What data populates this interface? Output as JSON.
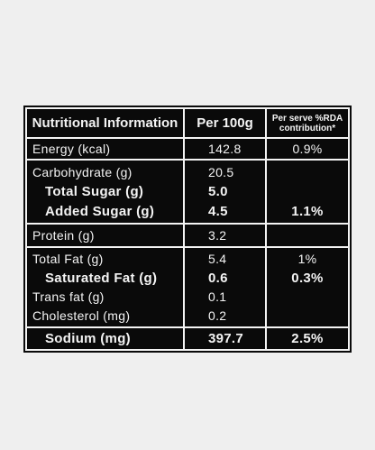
{
  "table": {
    "header": [
      "Nutritional Information",
      "Per 100g",
      "Per serve %RDA contribution*"
    ],
    "groups": [
      [
        {
          "label": "Energy (kcal)",
          "per_100g": "142.8",
          "rda": "0.9%"
        }
      ],
      [
        {
          "label": "Carbohydrate (g)",
          "per_100g": "20.5"
        },
        {
          "label": "Total Sugar (g)",
          "per_100g": "5.0",
          "bold": true
        },
        {
          "label": "Added Sugar (g)",
          "per_100g": "4.5",
          "rda": "1.1%",
          "bold": true
        }
      ],
      [
        {
          "label": "Protein (g)",
          "per_100g": "3.2"
        }
      ],
      [
        {
          "label": "Total Fat (g)",
          "per_100g": "5.4",
          "rda": "1%"
        },
        {
          "label": "Saturated Fat (g)",
          "per_100g": "0.6",
          "rda": "0.3%",
          "bold": true
        },
        {
          "label": "Trans fat (g)",
          "per_100g": "0.1"
        },
        {
          "label": "Cholesterol (mg)",
          "per_100g": "0.2"
        }
      ],
      [
        {
          "label": "Sodium (mg)",
          "per_100g": "397.7",
          "rda": "2.5%",
          "bold": true
        }
      ]
    ]
  }
}
